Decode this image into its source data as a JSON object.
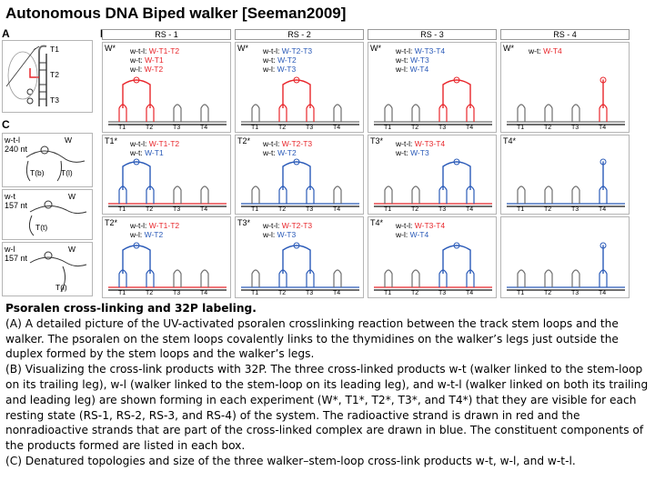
{
  "title": "Autonomous DNA Biped walker [Seeman2009]",
  "panels": {
    "a": "A",
    "b": "B",
    "c": "C"
  },
  "rs_headers": [
    "RS - 1",
    "RS - 2",
    "RS - 3",
    "RS - 4"
  ],
  "panel_a_labels": [
    "T1",
    "T2",
    "T3"
  ],
  "track_labels": [
    "T1",
    "T2",
    "T3",
    "T4"
  ],
  "grid": [
    [
      {
        "tag": "W*",
        "lines": [
          {
            "label": "w-t-l: ",
            "value": "W-T1-T2",
            "color": "red"
          },
          {
            "label": "w-t: ",
            "value": "W-T1",
            "color": "red"
          },
          {
            "label": "w-l: ",
            "value": "W-T2",
            "color": "red"
          }
        ]
      },
      {
        "tag": "W*",
        "lines": [
          {
            "label": "w-t-l: ",
            "value": "W-T2-T3",
            "color": "blue"
          },
          {
            "label": "w-t: ",
            "value": "W-T2",
            "color": "blue"
          },
          {
            "label": "w-l: ",
            "value": "W-T3",
            "color": "blue"
          }
        ]
      },
      {
        "tag": "W*",
        "lines": [
          {
            "label": "w-t-l: ",
            "value": "W-T3-T4",
            "color": "blue"
          },
          {
            "label": "w-t: ",
            "value": "W-T3",
            "color": "blue"
          },
          {
            "label": "w-l: ",
            "value": "W-T4",
            "color": "blue"
          }
        ]
      },
      {
        "tag": "W*",
        "lines": [
          {
            "label": "w-t: ",
            "value": "W-T4",
            "color": "red"
          }
        ]
      }
    ],
    [
      {
        "tag": "T1*",
        "lines": [
          {
            "label": "w-t-l: ",
            "value": "W-T1-T2",
            "color": "red"
          },
          {
            "label": "w-t: ",
            "value": "W-T1",
            "color": "blue"
          }
        ]
      },
      {
        "tag": "T2*",
        "lines": [
          {
            "label": "w-t-l: ",
            "value": "W-T2-T3",
            "color": "red"
          },
          {
            "label": "w-t: ",
            "value": "W-T2",
            "color": "blue"
          }
        ]
      },
      {
        "tag": "T3*",
        "lines": [
          {
            "label": "w-t-l: ",
            "value": "W-T3-T4",
            "color": "red"
          },
          {
            "label": "w-t: ",
            "value": "W-T3",
            "color": "blue"
          }
        ]
      },
      {
        "tag": "T4*",
        "lines": []
      }
    ],
    [
      {
        "tag": "T2*",
        "lines": [
          {
            "label": "w-t-l: ",
            "value": "W-T1-T2",
            "color": "red"
          },
          {
            "label": "w-l: ",
            "value": "W-T2",
            "color": "blue"
          }
        ]
      },
      {
        "tag": "T3*",
        "lines": [
          {
            "label": "w-t-l: ",
            "value": "W-T2-T3",
            "color": "red"
          },
          {
            "label": "w-l: ",
            "value": "W-T3",
            "color": "blue"
          }
        ]
      },
      {
        "tag": "T4*",
        "lines": [
          {
            "label": "w-t-l: ",
            "value": "W-T3-T4",
            "color": "red"
          },
          {
            "label": "w-l: ",
            "value": "W-T4",
            "color": "blue"
          }
        ]
      },
      {
        "tag": "",
        "lines": []
      }
    ]
  ],
  "panel_c": [
    {
      "label": "w-t-l\n240 nt",
      "w": "W",
      "legs": [
        "T(b)",
        "T(l)"
      ]
    },
    {
      "label": "w-t\n157 nt",
      "w": "W",
      "legs": [
        "T(t)"
      ]
    },
    {
      "label": "w-l\n157 nt",
      "w": "W",
      "legs": [
        "T(l)"
      ]
    }
  ],
  "caption": {
    "heading": "Psoralen cross-linking and 32P labeling.",
    "a": "(A) A detailed picture of the UV-activated psoralen crosslinking reaction between the track stem loops and the walker. The psoralen on the stem loops covalently links to the thymidines on the walker’s legs just outside the duplex formed by the stem loops and the walker’s legs.",
    "b": "(B) Visualizing the cross-link products with 32P. The three cross-linked products w-t (walker linked to the stem-loop on its trailing leg), w-l (walker linked to the stem-loop on its leading leg), and w-t-l (walker linked on both its trailing and leading leg) are shown forming in each experiment (W*, T1*, T2*, T3*, and T4*) that they are visible for each resting state (RS-1, RS-2, RS-3, and RS-4) of the system. The radioactive strand is drawn in red and the nonradioactive strands that are part of the cross-linked complex are drawn in blue. The constituent components of the products formed are listed in each box.",
    "c": "(C) Denatured topologies and size of the three walker–stem-loop cross-link products w-t, w-l, and w-t-l."
  },
  "colors": {
    "red": "#e8262b",
    "blue": "#2a5ab8",
    "grey": "#6e6e6e"
  }
}
